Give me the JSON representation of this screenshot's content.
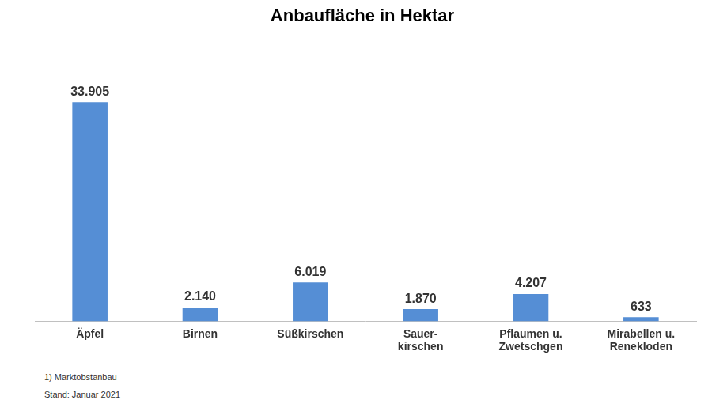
{
  "chart_data": {
    "type": "bar",
    "title": "Anbaufläche in Hektar",
    "categories": [
      "Äpfel",
      "Birnen",
      "Süßkirschen",
      "Sauer-\nkirschen",
      "Pflaumen u.\nZwetschgen",
      "Mirabellen u.\nRenekloden"
    ],
    "values": [
      33905,
      2140,
      6019,
      1870,
      4207,
      633
    ],
    "value_labels": [
      "33.905",
      "2.140",
      "6.019",
      "1.870",
      "4.207",
      "633"
    ],
    "color": "#558ed5",
    "grid": false,
    "data_labels": true,
    "tick_labels": "x",
    "notes": [
      "1) Marktobstanbau",
      "Stand: Januar 2021"
    ]
  }
}
